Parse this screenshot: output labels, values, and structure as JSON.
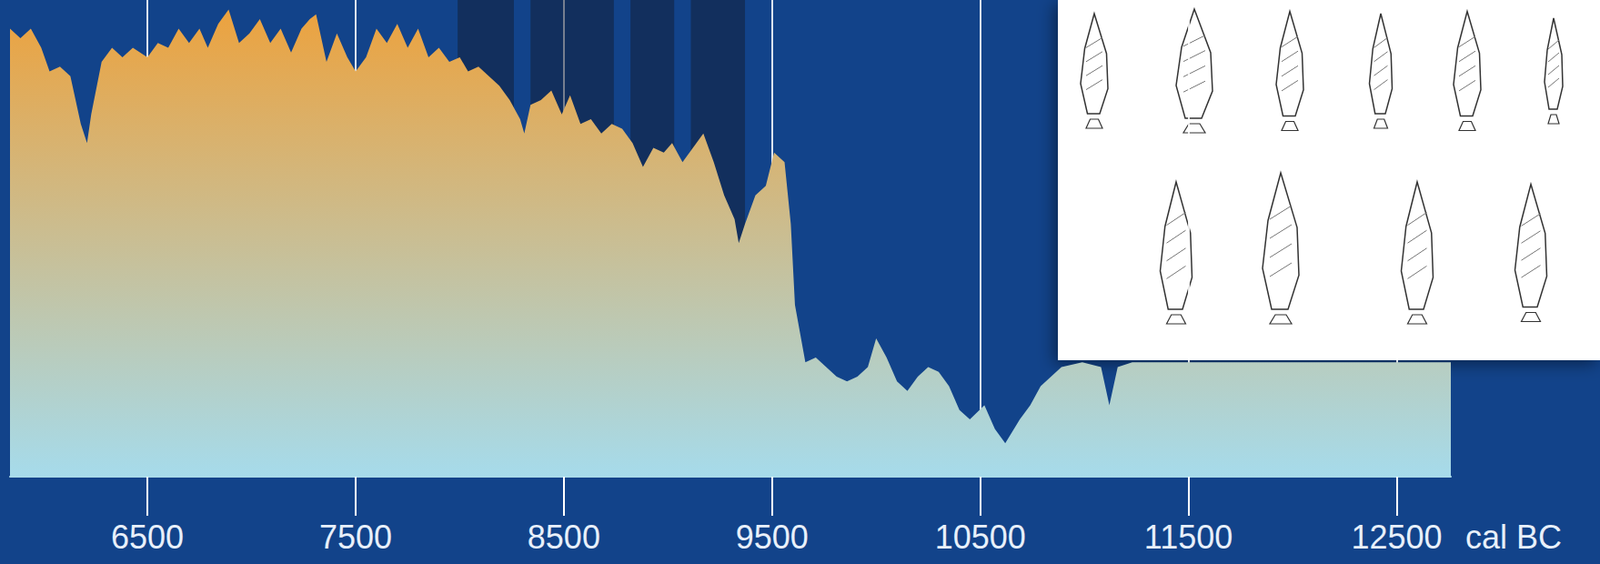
{
  "chart_data": {
    "type": "area",
    "color": "#eca23e",
    "x": [
      5840,
      5890,
      5940,
      5990,
      6030,
      6080,
      6130,
      6180,
      6210,
      6230,
      6280,
      6330,
      6380,
      6430,
      6500,
      6550,
      6600,
      6650,
      6700,
      6750,
      6790,
      6840,
      6890,
      6940,
      6990,
      7040,
      7090,
      7140,
      7190,
      7240,
      7280,
      7310,
      7360,
      7410,
      7460,
      7500,
      7550,
      7600,
      7650,
      7700,
      7750,
      7800,
      7850,
      7900,
      7950,
      8000,
      8040,
      8090,
      8140,
      8190,
      8240,
      8290,
      8310,
      8340,
      8390,
      8440,
      8490,
      8530,
      8580,
      8630,
      8680,
      8730,
      8780,
      8830,
      8880,
      8930,
      8980,
      9020,
      9070,
      9120,
      9170,
      9220,
      9270,
      9320,
      9340,
      9370,
      9420,
      9470,
      9510,
      9560,
      9590,
      9610,
      9660,
      9710,
      9760,
      9810,
      9860,
      9910,
      9960,
      10000,
      10050,
      10100,
      10150,
      10200,
      10250,
      10300,
      10350,
      10400,
      10450,
      10520,
      10570,
      10620,
      10690,
      10740,
      10790,
      10840,
      10890,
      10990,
      11080,
      11120,
      11160,
      11230,
      11670,
      12160,
      12760
    ],
    "values": [
      94,
      92,
      94,
      90,
      85,
      86,
      84,
      74,
      70,
      76,
      87,
      90,
      88,
      90,
      88,
      91,
      90,
      94,
      91,
      94,
      90,
      95,
      98,
      91,
      93,
      96,
      91,
      94,
      89,
      94,
      96,
      97,
      87,
      93,
      88,
      85,
      88,
      94,
      91,
      95,
      90,
      94,
      88,
      90,
      87,
      88,
      85,
      86,
      84,
      82,
      79,
      75,
      72,
      78,
      79,
      81,
      76,
      80,
      74,
      75,
      72,
      74,
      73,
      70,
      65,
      69,
      68,
      70,
      66,
      69,
      72,
      66,
      59,
      54,
      49,
      53,
      59,
      61,
      68,
      66,
      53,
      36,
      24,
      25,
      23,
      21,
      20,
      21,
      23,
      29,
      25,
      20,
      18,
      21,
      23,
      22,
      19,
      14,
      12,
      15,
      10,
      7,
      12,
      15,
      19,
      21,
      23,
      24,
      23,
      15,
      23,
      24,
      24,
      24,
      24
    ],
    "shaded_periods": [
      [
        7990,
        8260
      ],
      [
        8340,
        8740
      ],
      [
        8820,
        9030
      ],
      [
        9110,
        9370
      ]
    ],
    "xlabel": "cal BC",
    "xlim": [
      5840,
      12760
    ],
    "xticks": [
      6500,
      7500,
      8500,
      9500,
      10500,
      11500,
      12500
    ],
    "ylim": [
      0,
      100
    ],
    "tick_labels": "x",
    "grid": true
  }
}
